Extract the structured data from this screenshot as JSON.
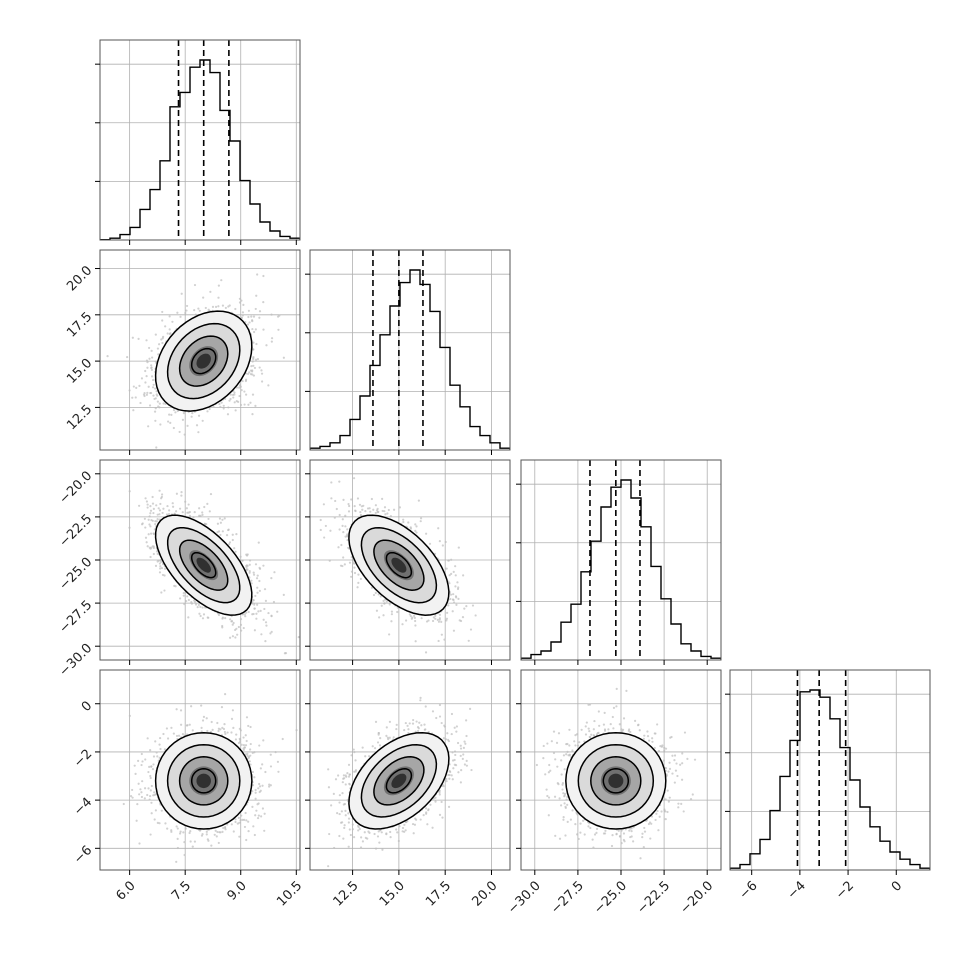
{
  "chart_data": {
    "type": "corner",
    "parameters": [
      {
        "range": [
          5.2,
          10.6
        ],
        "ticks": [
          6.0,
          7.5,
          9.0,
          10.5
        ],
        "tick_labels": [
          "6.0",
          "7.5",
          "9.0",
          "10.5"
        ],
        "quantiles": [
          7.32,
          8.0,
          8.68
        ],
        "mean": 8.0,
        "sd": 0.65,
        "hist": [
          0.002,
          0.01,
          0.03,
          0.07,
          0.17,
          0.28,
          0.44,
          0.74,
          0.82,
          0.96,
          1.0,
          0.93,
          0.72,
          0.55,
          0.33,
          0.2,
          0.1,
          0.05,
          0.02,
          0.01
        ]
      },
      {
        "range": [
          10.2,
          21.0
        ],
        "ticks": [
          12.5,
          15.0,
          17.5,
          20.0
        ],
        "tick_labels": [
          "12.5",
          "15.0",
          "17.5",
          "20.0"
        ],
        "quantiles": [
          13.6,
          15.0,
          16.3
        ],
        "mean": 15.0,
        "sd": 1.35,
        "hist": [
          0.01,
          0.02,
          0.04,
          0.08,
          0.17,
          0.3,
          0.47,
          0.64,
          0.8,
          0.93,
          1.0,
          0.92,
          0.77,
          0.57,
          0.36,
          0.24,
          0.13,
          0.08,
          0.04,
          0.01
        ]
      },
      {
        "range": [
          -30.8,
          -19.2
        ],
        "ticks": [
          -30.0,
          -27.5,
          -25.0,
          -22.5,
          -20.0
        ],
        "tick_labels": [
          "−30.0",
          "−27.5",
          "−25.0",
          "−22.5",
          "−20.0"
        ],
        "quantiles": [
          -26.8,
          -25.3,
          -23.9
        ],
        "mean": -25.3,
        "sd": 1.45,
        "hist": [
          0.01,
          0.03,
          0.05,
          0.1,
          0.21,
          0.31,
          0.49,
          0.66,
          0.85,
          0.96,
          1.0,
          0.9,
          0.74,
          0.52,
          0.34,
          0.2,
          0.09,
          0.05,
          0.02,
          0.01
        ]
      },
      {
        "range": [
          -6.9,
          1.4
        ],
        "ticks": [
          -6,
          -4,
          -2,
          0
        ],
        "tick_labels": [
          "−6",
          "−4",
          "−2",
          "0"
        ],
        "quantiles": [
          -4.1,
          -3.2,
          -2.1
        ],
        "mean": -3.2,
        "sd": 1.0,
        "hist": [
          0.01,
          0.03,
          0.09,
          0.17,
          0.33,
          0.52,
          0.72,
          0.99,
          1.0,
          0.96,
          0.84,
          0.68,
          0.5,
          0.35,
          0.24,
          0.16,
          0.1,
          0.06,
          0.03,
          0.01
        ]
      }
    ],
    "correlations": [
      [
        1.0,
        0.3,
        -0.6,
        0.0
      ],
      [
        0.3,
        1.0,
        -0.55,
        0.45
      ],
      [
        -0.6,
        -0.55,
        1.0,
        0.0
      ],
      [
        0.0,
        0.45,
        0.0,
        1.0
      ]
    ],
    "contour_levels_sigma": [
      0.5,
      1.0,
      1.5,
      2.0
    ],
    "quantile_style": "dashed",
    "grid": true,
    "colors": {
      "line": "#000000",
      "scatter": "#bdbdbd",
      "grid": "#b0b0b0",
      "frame": "#555555"
    }
  }
}
